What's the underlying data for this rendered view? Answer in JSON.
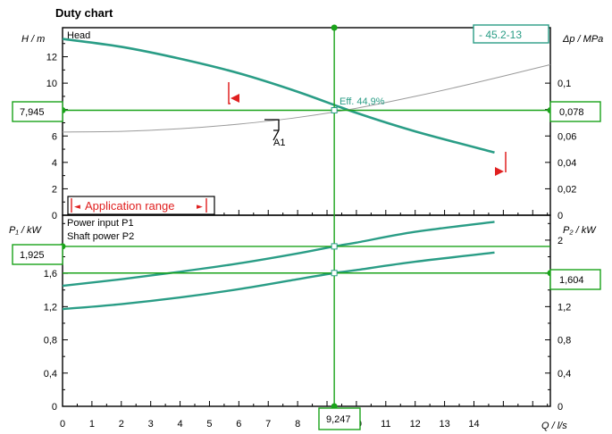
{
  "colors": {
    "curve": "#2a9d86",
    "operating": "#1aa31a",
    "range": "#e02020",
    "system": "#9a9a9a",
    "axis": "#000000"
  },
  "chart_data": {
    "type": "line",
    "title": "Duty chart",
    "model": "- 45.2-13",
    "x_axis": {
      "label": "Q / l/s",
      "ticks": [
        "0",
        "1",
        "2",
        "3",
        "4",
        "5",
        "6",
        "7",
        "8",
        "9",
        "10",
        "11",
        "12",
        "13",
        "14"
      ],
      "range": [
        0,
        16.6
      ]
    },
    "head_panel": {
      "left_label": "H / m",
      "right_label": "Δp / MPa",
      "left_ticks": [
        "0",
        "2",
        "4",
        "6",
        "8",
        "10",
        "12"
      ],
      "right_ticks": [
        "0",
        "0,02",
        "0,04",
        "0,06",
        "0,08",
        "0,1"
      ],
      "y_range": [
        0,
        14.2
      ],
      "series": [
        {
          "name": "Head",
          "x": [
            0,
            2,
            4,
            6,
            8,
            10,
            12,
            14.7
          ],
          "y": [
            13.35,
            12.75,
            11.85,
            10.75,
            9.35,
            7.75,
            6.35,
            4.75
          ]
        },
        {
          "name": "",
          "kind": "system",
          "x": [
            0,
            2,
            4,
            6,
            8,
            10,
            12,
            14,
            16.6
          ],
          "y": [
            6.3,
            6.35,
            6.55,
            6.9,
            7.4,
            8.1,
            9.0,
            10.0,
            11.4
          ]
        }
      ],
      "efficiency_label": "Eff.  44,9%",
      "curve_label": "A1",
      "range_label": "Application range"
    },
    "power_panel": {
      "left_label": "P₁ / kW",
      "right_label": "P₂ / kW",
      "left_ticks": [
        "0",
        "0,4",
        "0,8",
        "1,2",
        "1,6"
      ],
      "right_ticks": [
        "0",
        "0,4",
        "0,8",
        "1,2",
        "1,6",
        "2"
      ],
      "y_range": [
        0,
        2.3
      ],
      "series": [
        {
          "name": "Power input P1",
          "x": [
            0,
            2,
            4,
            6,
            8,
            9.247,
            10,
            12,
            14.7
          ],
          "y": [
            1.45,
            1.53,
            1.62,
            1.72,
            1.84,
            1.925,
            1.97,
            2.1,
            2.22
          ]
        },
        {
          "name": "Shaft power P2",
          "x": [
            0,
            2,
            4,
            6,
            8,
            9.247,
            10,
            12,
            14.7
          ],
          "y": [
            1.17,
            1.23,
            1.31,
            1.41,
            1.53,
            1.604,
            1.64,
            1.74,
            1.85
          ]
        }
      ]
    },
    "operating_point": {
      "q": "9,247",
      "h": "7,945",
      "dp": "0,078",
      "p1": "1,925",
      "p2": "1,604",
      "q_value": 9.247,
      "h_value": 7.945,
      "p1_value": 1.925,
      "p2_value": 1.604
    }
  }
}
